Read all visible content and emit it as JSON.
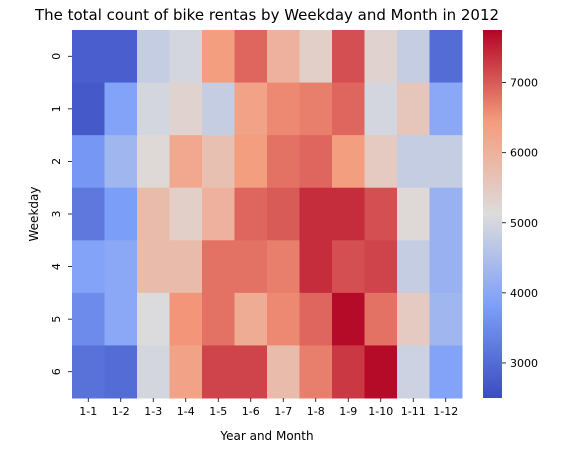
{
  "chart_data": {
    "type": "heatmap",
    "title": "The total count of bike rentas by Weekday and Month in 2012",
    "xlabel": "Year and Month",
    "ylabel": "Weekday",
    "x_categories": [
      "1-1",
      "1-2",
      "1-3",
      "1-4",
      "1-5",
      "1-6",
      "1-7",
      "1-8",
      "1-9",
      "1-10",
      "1-11",
      "1-12"
    ],
    "y_categories": [
      "0",
      "1",
      "2",
      "3",
      "4",
      "5",
      "6"
    ],
    "values": [
      [
        2800,
        2800,
        4800,
        5000,
        6400,
        6900,
        6000,
        5400,
        7100,
        5300,
        4800,
        3000
      ],
      [
        2700,
        3900,
        5000,
        5300,
        4800,
        6300,
        6600,
        6700,
        6900,
        5000,
        5600,
        4000
      ],
      [
        3700,
        4300,
        5200,
        6200,
        5700,
        6400,
        6800,
        6900,
        6400,
        5500,
        4800,
        4800
      ],
      [
        3200,
        3800,
        5800,
        5400,
        6000,
        6900,
        7000,
        7400,
        7400,
        7100,
        5200,
        4200
      ],
      [
        3900,
        4000,
        5800,
        5800,
        6800,
        6800,
        6700,
        7400,
        7100,
        7200,
        4800,
        4200
      ],
      [
        3500,
        4000,
        5100,
        6500,
        6800,
        6100,
        6600,
        6900,
        7700,
        6800,
        5500,
        4300
      ],
      [
        3100,
        3000,
        5000,
        6300,
        7200,
        7200,
        5800,
        6700,
        7300,
        7700,
        4900,
        3900
      ]
    ],
    "colormap": "coolwarm",
    "colorbar": {
      "range": [
        2500,
        7750
      ],
      "ticks": [
        3000,
        4000,
        5000,
        6000,
        7000
      ]
    },
    "grid": false
  }
}
